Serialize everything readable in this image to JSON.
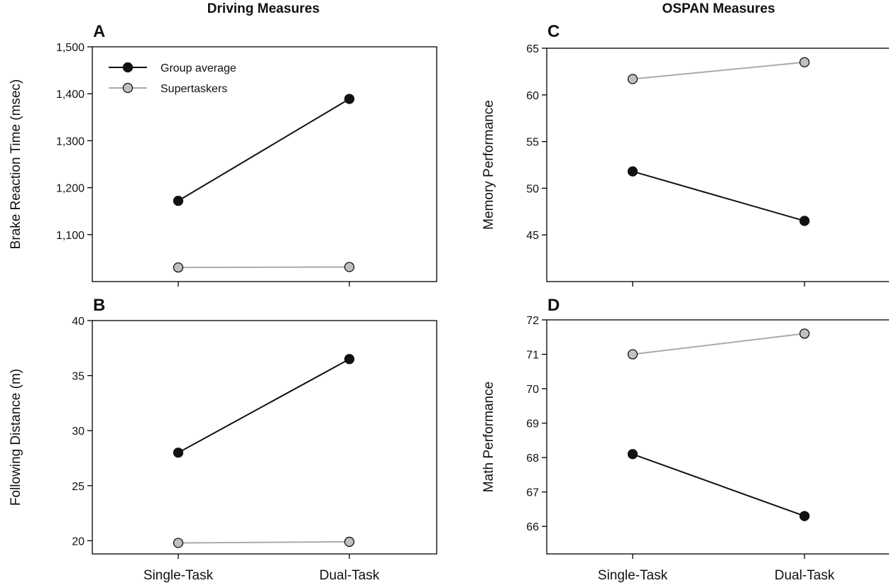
{
  "figure": {
    "left_title": "Driving Measures",
    "right_title": "OSPAN Measures",
    "legend": {
      "group": "Group average",
      "super": "Supertaskers"
    }
  },
  "colors": {
    "group": "#111111",
    "super": "#aaaaaa",
    "super_fill": "#c0c0c0",
    "axis": "#000000"
  },
  "chart_data": [
    {
      "id": "A",
      "type": "line",
      "panel_letter": "A",
      "ylabel": "Brake Reaction Time (msec)",
      "categories": [
        "",
        ""
      ],
      "yticks": [
        1100,
        1200,
        1300,
        1400,
        1500
      ],
      "ytick_labels": [
        "1,100",
        "1,200",
        "1,300",
        "1,400",
        "1,500"
      ],
      "ylim": [
        1000,
        1500
      ],
      "legend": "top-left",
      "series": [
        {
          "name": "Group average",
          "values": [
            1172,
            1389
          ]
        },
        {
          "name": "Supertaskers",
          "values": [
            1030,
            1031
          ]
        }
      ]
    },
    {
      "id": "B",
      "type": "line",
      "panel_letter": "B",
      "ylabel": "Following Distance (m)",
      "categories": [
        "Single-Task",
        "Dual-Task"
      ],
      "yticks": [
        20,
        25,
        30,
        35,
        40
      ],
      "ytick_labels": [
        "20",
        "25",
        "30",
        "35",
        "40"
      ],
      "ylim": [
        18.8,
        40
      ],
      "series": [
        {
          "name": "Group average",
          "values": [
            28.0,
            36.5
          ]
        },
        {
          "name": "Supertaskers",
          "values": [
            19.8,
            19.9
          ]
        }
      ]
    },
    {
      "id": "C",
      "type": "line",
      "panel_letter": "C",
      "ylabel": "Memory Performance",
      "categories": [
        "",
        ""
      ],
      "yticks": [
        45,
        50,
        55,
        60,
        65
      ],
      "ytick_labels": [
        "45",
        "50",
        "55",
        "60",
        "65"
      ],
      "ylim": [
        40,
        65
      ],
      "series": [
        {
          "name": "Group average",
          "values": [
            51.8,
            46.5
          ]
        },
        {
          "name": "Supertaskers",
          "values": [
            61.7,
            63.5
          ]
        }
      ]
    },
    {
      "id": "D",
      "type": "line",
      "panel_letter": "D",
      "ylabel": "Math Performance",
      "categories": [
        "Single-Task",
        "Dual-Task"
      ],
      "yticks": [
        66,
        67,
        68,
        69,
        70,
        71,
        72
      ],
      "ytick_labels": [
        "66",
        "67",
        "68",
        "69",
        "70",
        "71",
        "72"
      ],
      "ylim": [
        65.2,
        72
      ],
      "series": [
        {
          "name": "Group average",
          "values": [
            68.1,
            66.3
          ]
        },
        {
          "name": "Supertaskers",
          "values": [
            71.0,
            71.6
          ]
        }
      ]
    }
  ]
}
